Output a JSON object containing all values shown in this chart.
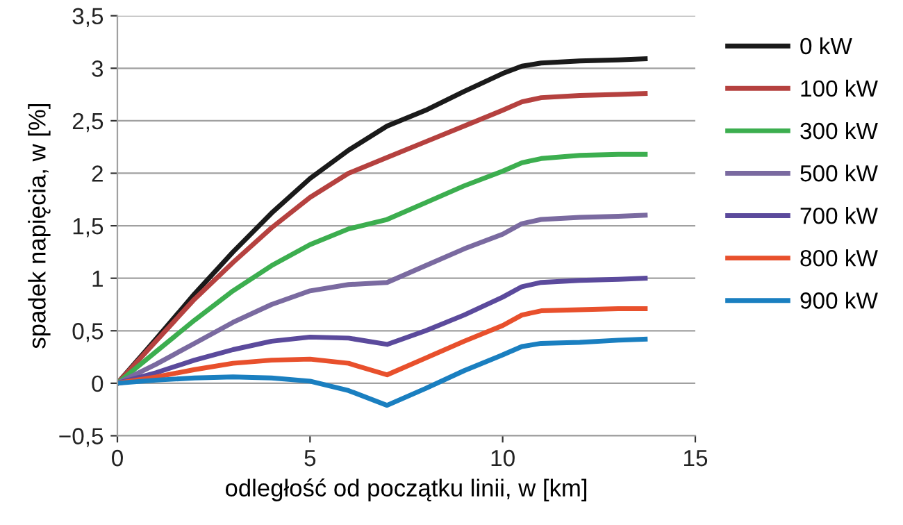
{
  "chart_data": {
    "type": "line",
    "xlabel": "odległość od początku linii, w [km]",
    "ylabel": "spadek napięcia, w [%]",
    "x": [
      0,
      1,
      2,
      3,
      4,
      5,
      6,
      7,
      8,
      9,
      10,
      10.5,
      11,
      12,
      13,
      13.7
    ],
    "series": [
      {
        "name": "0 kW",
        "color": "#1a1a1a",
        "values": [
          0,
          0.42,
          0.85,
          1.25,
          1.62,
          1.95,
          2.22,
          2.45,
          2.6,
          2.78,
          2.95,
          3.02,
          3.05,
          3.07,
          3.08,
          3.09
        ]
      },
      {
        "name": "100 kW",
        "color": "#b5413f",
        "values": [
          0,
          0.4,
          0.8,
          1.15,
          1.48,
          1.77,
          2.0,
          2.15,
          2.3,
          2.45,
          2.6,
          2.68,
          2.72,
          2.74,
          2.75,
          2.76
        ]
      },
      {
        "name": "300 kW",
        "color": "#3cae4f",
        "values": [
          0,
          0.3,
          0.6,
          0.88,
          1.12,
          1.32,
          1.47,
          1.56,
          1.72,
          1.88,
          2.02,
          2.1,
          2.14,
          2.17,
          2.18,
          2.18
        ]
      },
      {
        "name": "500 kW",
        "color": "#7a6aa0",
        "values": [
          0,
          0.18,
          0.38,
          0.58,
          0.75,
          0.88,
          0.94,
          0.96,
          1.12,
          1.28,
          1.42,
          1.52,
          1.56,
          1.58,
          1.59,
          1.6
        ]
      },
      {
        "name": "700 kW",
        "color": "#5b4a9c",
        "values": [
          0,
          0.1,
          0.22,
          0.32,
          0.4,
          0.44,
          0.43,
          0.37,
          0.5,
          0.65,
          0.82,
          0.92,
          0.96,
          0.98,
          0.99,
          1.0
        ]
      },
      {
        "name": "800 kW",
        "color": "#e8502c",
        "values": [
          0,
          0.06,
          0.13,
          0.19,
          0.22,
          0.23,
          0.19,
          0.08,
          0.24,
          0.4,
          0.55,
          0.65,
          0.69,
          0.7,
          0.71,
          0.71
        ]
      },
      {
        "name": "900 kW",
        "color": "#1a7fc0",
        "values": [
          0,
          0.03,
          0.05,
          0.06,
          0.05,
          0.02,
          -0.07,
          -0.21,
          -0.05,
          0.12,
          0.27,
          0.35,
          0.38,
          0.39,
          0.41,
          0.42
        ]
      }
    ],
    "xlim": [
      0,
      15
    ],
    "xticks": [
      0,
      5,
      10,
      15
    ],
    "ylim": [
      -0.5,
      3.5
    ],
    "yticks": [
      {
        "value": -0.5,
        "label": "−0,5"
      },
      0,
      {
        "value": 0.5,
        "label": "0,5"
      },
      1,
      {
        "value": 1.5,
        "label": "1,5"
      },
      2,
      {
        "value": 2.5,
        "label": "2,5"
      },
      3,
      {
        "value": 3.5,
        "label": "3,5"
      }
    ],
    "grid": "y",
    "legend": "right",
    "marker": "none",
    "line_style": "solid"
  }
}
